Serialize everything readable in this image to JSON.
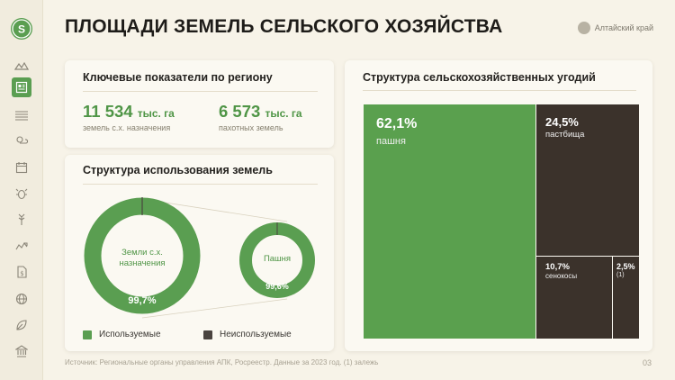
{
  "header": {
    "title": "ПЛОЩАДИ ЗЕМЕЛЬ СЕЛЬСКОГО ХОЗЯЙСТВА",
    "region": "Алтайский край"
  },
  "sidebar": {
    "logo_letter": "S",
    "icons": [
      "map-icon",
      "dashboard-icon",
      "fields-icon",
      "weather-icon",
      "calendar-icon",
      "pest-icon",
      "harvest-icon",
      "livestock-icon",
      "finance-icon",
      "globe-icon",
      "leaf-icon",
      "institution-icon"
    ],
    "active_index": 1
  },
  "kpi_card": {
    "title": "Ключевые показатели по региону",
    "items": [
      {
        "value": "11 534",
        "unit": "тыс. га",
        "caption": "земель с.х. назначения"
      },
      {
        "value": "6 573",
        "unit": "тыс. га",
        "caption": "пахотных земель"
      }
    ]
  },
  "usage_card": {
    "title": "Структура использования земель",
    "donuts": [
      {
        "center_label_1": "Земли с.х.",
        "center_label_2": "назначения",
        "percent_label": "99,7%",
        "used_fraction": 0.997
      },
      {
        "center_label_1": "Пашня",
        "center_label_2": "",
        "percent_label": "99,6%",
        "used_fraction": 0.996
      }
    ],
    "legend": [
      {
        "label": "Используемые",
        "color": "#5a9e51"
      },
      {
        "label": "Неиспользуемые",
        "color": "#4a4440"
      }
    ]
  },
  "treemap_card": {
    "title": "Структура сельскохозяйственных угодий",
    "cells": [
      {
        "value": "62,1%",
        "label": "пашня",
        "color": "#5aa04e"
      },
      {
        "value": "24,5%",
        "label": "пастбища",
        "color": "#3b322b"
      },
      {
        "value": "10,7%",
        "label": "сенокосы",
        "color": "#3b322b"
      },
      {
        "value": "2,5%",
        "label": "(1)",
        "color": "#3b322b"
      }
    ]
  },
  "footer": {
    "source": "Источник: Региональные органы управления АПК, Росреестр. Данные за 2023 год. (1) залежь",
    "page": "03"
  },
  "colors": {
    "accent": "#5a9e51",
    "background": "#f7f3e8",
    "dark": "#3b322b"
  }
}
